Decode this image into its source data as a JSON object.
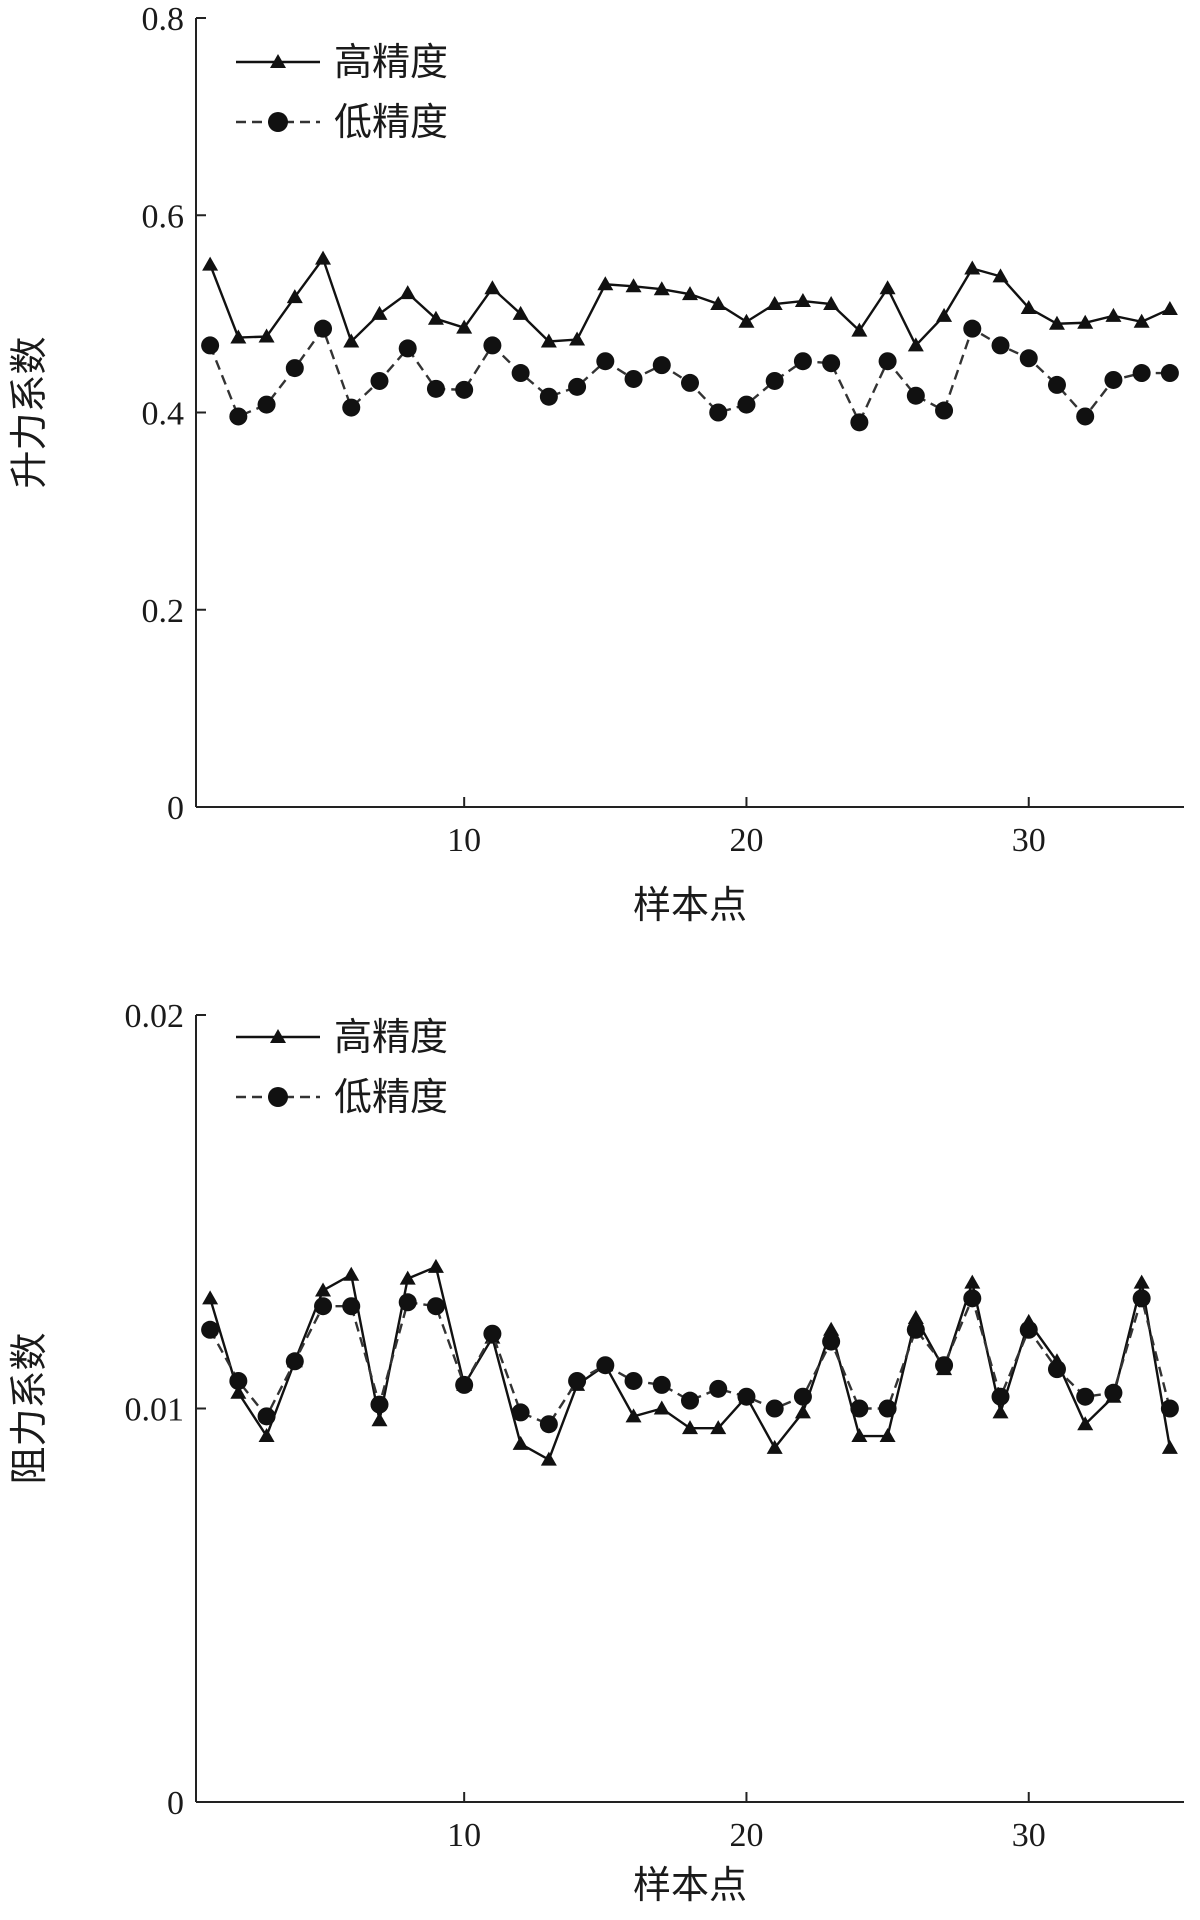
{
  "chart_data": [
    {
      "type": "line",
      "title": "",
      "xlabel": "样本点",
      "ylabel": "升力系数",
      "xlim": [
        0.5,
        35.5
      ],
      "ylim": [
        0,
        0.8
      ],
      "xticks": [
        10,
        20,
        30
      ],
      "xtick_labels": [
        "10",
        "20",
        "30"
      ],
      "yticks": [
        0,
        0.2,
        0.4,
        0.6,
        0.8
      ],
      "ytick_labels": [
        "0",
        "0.2",
        "0.4",
        "0.6",
        "0.8"
      ],
      "grid": false,
      "legend_position": "top-left",
      "x": [
        1,
        2,
        3,
        4,
        5,
        6,
        7,
        8,
        9,
        10,
        11,
        12,
        13,
        14,
        15,
        16,
        17,
        18,
        19,
        20,
        21,
        22,
        23,
        24,
        25,
        26,
        27,
        28,
        29,
        30,
        31,
        32,
        33,
        34,
        35
      ],
      "series": [
        {
          "name": "高精度",
          "line_style": "solid",
          "marker": "triangle",
          "values": [
            0.55,
            0.476,
            0.477,
            0.517,
            0.556,
            0.472,
            0.5,
            0.521,
            0.495,
            0.486,
            0.526,
            0.5,
            0.472,
            0.474,
            0.53,
            0.528,
            0.525,
            0.52,
            0.51,
            0.492,
            0.51,
            0.513,
            0.51,
            0.483,
            0.526,
            0.468,
            0.498,
            0.546,
            0.538,
            0.506,
            0.49,
            0.491,
            0.498,
            0.492,
            0.505
          ]
        },
        {
          "name": "低精度",
          "line_style": "dashed",
          "marker": "circle",
          "values": [
            0.468,
            0.396,
            0.408,
            0.445,
            0.485,
            0.405,
            0.432,
            0.465,
            0.424,
            0.423,
            0.468,
            0.44,
            0.416,
            0.426,
            0.452,
            0.434,
            0.448,
            0.43,
            0.4,
            0.408,
            0.432,
            0.452,
            0.45,
            0.39,
            0.452,
            0.417,
            0.402,
            0.485,
            0.468,
            0.455,
            0.428,
            0.396,
            0.433,
            0.44,
            0.44
          ]
        }
      ]
    },
    {
      "type": "line",
      "title": "",
      "xlabel": "样本点",
      "ylabel": "阻力系数",
      "xlim": [
        0.5,
        35.5
      ],
      "ylim": [
        0,
        0.02
      ],
      "xticks": [
        10,
        20,
        30
      ],
      "xtick_labels": [
        "10",
        "20",
        "30"
      ],
      "yticks": [
        0,
        0.01,
        0.02
      ],
      "ytick_labels": [
        "0",
        "0.01",
        "0.02"
      ],
      "grid": false,
      "legend_position": "top-left",
      "x": [
        1,
        2,
        3,
        4,
        5,
        6,
        7,
        8,
        9,
        10,
        11,
        12,
        13,
        14,
        15,
        16,
        17,
        18,
        19,
        20,
        21,
        22,
        23,
        24,
        25,
        26,
        27,
        28,
        29,
        30,
        31,
        32,
        33,
        34,
        35
      ],
      "series": [
        {
          "name": "高精度",
          "line_style": "solid",
          "marker": "triangle",
          "values": [
            0.0128,
            0.0104,
            0.0093,
            0.0112,
            0.013,
            0.0134,
            0.0097,
            0.0133,
            0.0136,
            0.0106,
            0.0118,
            0.0091,
            0.0087,
            0.0106,
            0.0111,
            0.0098,
            0.01,
            0.0095,
            0.0095,
            0.0103,
            0.009,
            0.0099,
            0.012,
            0.0093,
            0.0093,
            0.0123,
            0.011,
            0.0132,
            0.0099,
            0.0122,
            0.0112,
            0.0096,
            0.0103,
            0.0132,
            0.009
          ]
        },
        {
          "name": "低精度",
          "line_style": "dashed",
          "marker": "circle",
          "values": [
            0.012,
            0.0107,
            0.0098,
            0.0112,
            0.0126,
            0.0126,
            0.0101,
            0.0127,
            0.0126,
            0.0106,
            0.0119,
            0.0099,
            0.0096,
            0.0107,
            0.0111,
            0.0107,
            0.0106,
            0.0102,
            0.0105,
            0.0103,
            0.01,
            0.0103,
            0.0117,
            0.01,
            0.01,
            0.012,
            0.0111,
            0.0128,
            0.0103,
            0.012,
            0.011,
            0.0103,
            0.0104,
            0.0128,
            0.01
          ]
        }
      ]
    }
  ]
}
